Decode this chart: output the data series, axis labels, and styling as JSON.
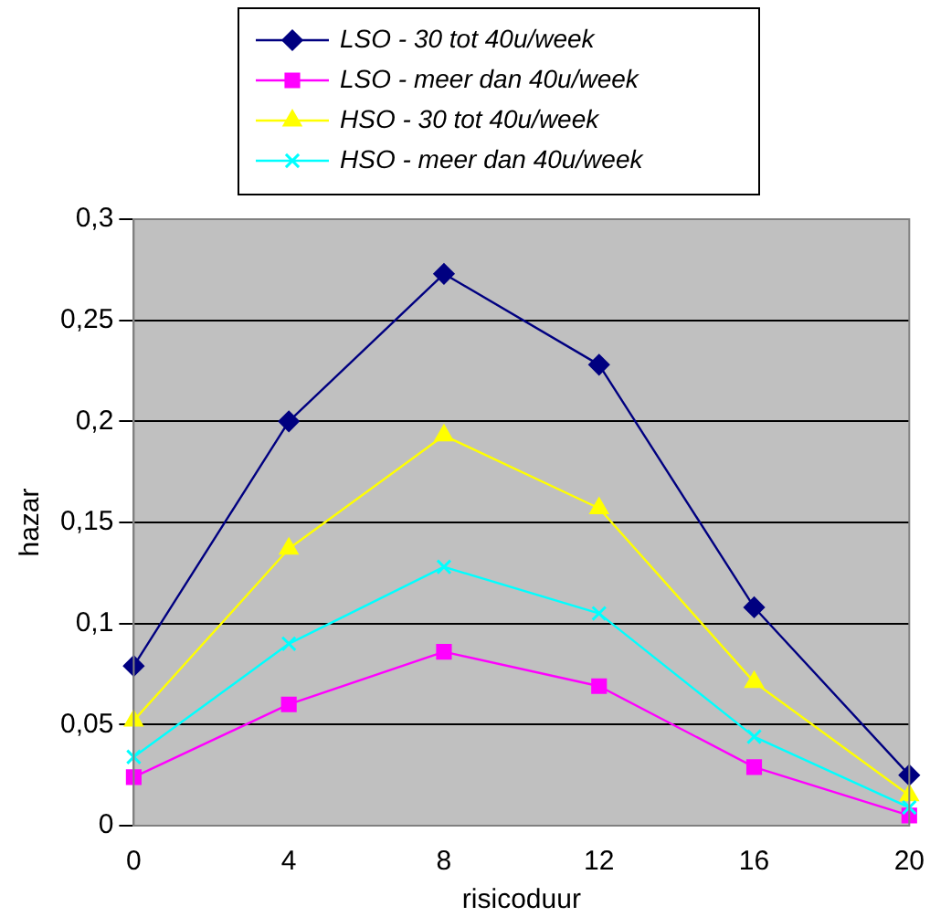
{
  "chart_data": {
    "type": "line",
    "xlabel": "risicoduur",
    "ylabel": "hazar",
    "x": [
      0,
      4,
      8,
      12,
      16,
      20
    ],
    "series": [
      {
        "name": "LSO - 30 tot 40u/week",
        "color": "#000080",
        "marker": "diamond",
        "values": [
          0.079,
          0.2,
          0.273,
          0.228,
          0.108,
          0.025
        ]
      },
      {
        "name": "LSO - meer dan 40u/week",
        "color": "#ff00ff",
        "marker": "square",
        "values": [
          0.024,
          0.06,
          0.086,
          0.069,
          0.029,
          0.005
        ]
      },
      {
        "name": "HSO - 30 tot 40u/week",
        "color": "#ffff00",
        "marker": "triangle",
        "values": [
          0.052,
          0.137,
          0.193,
          0.157,
          0.071,
          0.015
        ]
      },
      {
        "name": "HSO - meer dan 40u/week",
        "color": "#00ffff",
        "marker": "cross",
        "values": [
          0.034,
          0.09,
          0.128,
          0.105,
          0.044,
          0.009
        ]
      }
    ],
    "xlim": [
      0,
      20
    ],
    "xticks": [
      0,
      4,
      8,
      12,
      16,
      20
    ],
    "ylim": [
      0,
      0.3
    ],
    "yticks": [
      0,
      {
        "value": 0.05,
        "label": "0,05"
      },
      {
        "value": 0.1,
        "label": "0,1"
      },
      {
        "value": 0.15,
        "label": "0,15"
      },
      {
        "value": 0.2,
        "label": "0,2"
      },
      {
        "value": 0.25,
        "label": "0,25"
      },
      {
        "value": 0.3,
        "label": "0,3"
      }
    ],
    "grid": "y",
    "legend": "top",
    "line_style": "solid"
  }
}
